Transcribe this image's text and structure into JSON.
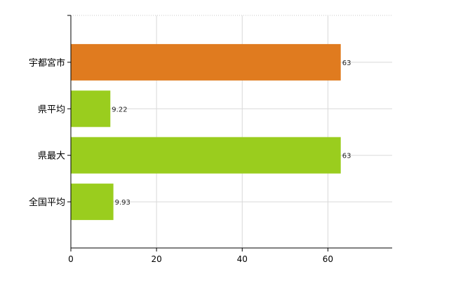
{
  "chart_data": {
    "type": "bar",
    "orientation": "horizontal",
    "categories": [
      "宇都宮市",
      "県平均",
      "県最大",
      "全国平均"
    ],
    "values": [
      63,
      9.22,
      63,
      9.93
    ],
    "value_labels": [
      "63",
      "9.22",
      "63",
      "9.93"
    ],
    "bar_colors": [
      "#E07B1F",
      "#9ACD1E",
      "#9ACD1E",
      "#9ACD1E"
    ],
    "xlim": [
      0,
      75
    ],
    "x_ticks": [
      0,
      20,
      40,
      60
    ],
    "x_tick_labels": [
      "0",
      "20",
      "40",
      "60"
    ],
    "grid": true,
    "legend": "none",
    "title": "",
    "xlabel": "",
    "ylabel": ""
  }
}
